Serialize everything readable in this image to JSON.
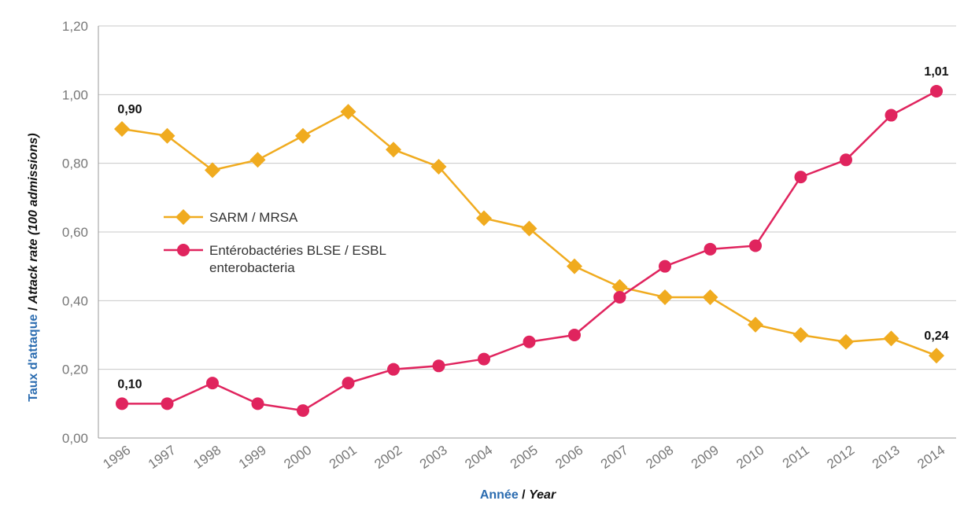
{
  "chart_data": {
    "type": "line",
    "categories": [
      "1996",
      "1997",
      "1998",
      "1999",
      "2000",
      "2001",
      "2002",
      "2003",
      "2004",
      "2005",
      "2006",
      "2007",
      "2008",
      "2009",
      "2010",
      "2011",
      "2012",
      "2013",
      "2014"
    ],
    "series": [
      {
        "name": "SARM / MRSA",
        "color": "#F0AB1F",
        "marker": "diamond",
        "values": [
          0.9,
          0.88,
          0.78,
          0.81,
          0.88,
          0.95,
          0.84,
          0.79,
          0.64,
          0.61,
          0.5,
          0.44,
          0.41,
          0.41,
          0.33,
          0.3,
          0.28,
          0.29,
          0.24
        ]
      },
      {
        "name_lines": [
          "Entérobactéries BLSE / ESBL",
          "enterobacteria"
        ],
        "color": "#E0245E",
        "marker": "circle",
        "values": [
          0.1,
          0.1,
          0.16,
          0.1,
          0.08,
          0.16,
          0.2,
          0.21,
          0.23,
          0.28,
          0.3,
          0.41,
          0.5,
          0.55,
          0.56,
          0.76,
          0.81,
          0.94,
          1.01
        ]
      }
    ],
    "yticks": [
      "0,00",
      "0,20",
      "0,40",
      "0,60",
      "0,80",
      "1,00",
      "1,20"
    ],
    "ylim": [
      0,
      1.2
    ],
    "grid": true,
    "legend_position": "center-left",
    "data_labels": [
      {
        "series": 0,
        "index": 0,
        "text": "0,90"
      },
      {
        "series": 0,
        "index": 18,
        "text": "0,24"
      },
      {
        "series": 1,
        "index": 0,
        "text": "0,10"
      },
      {
        "series": 1,
        "index": 18,
        "text": "1,01"
      }
    ],
    "xlabel": {
      "fr": "Année",
      "sep": " / ",
      "en": "Year"
    },
    "ylabel": {
      "fr": "Taux d'attaque",
      "sep": " / ",
      "en": "Attack rate (100 admissions)"
    },
    "axis_title_color": "#2B6CB0"
  }
}
